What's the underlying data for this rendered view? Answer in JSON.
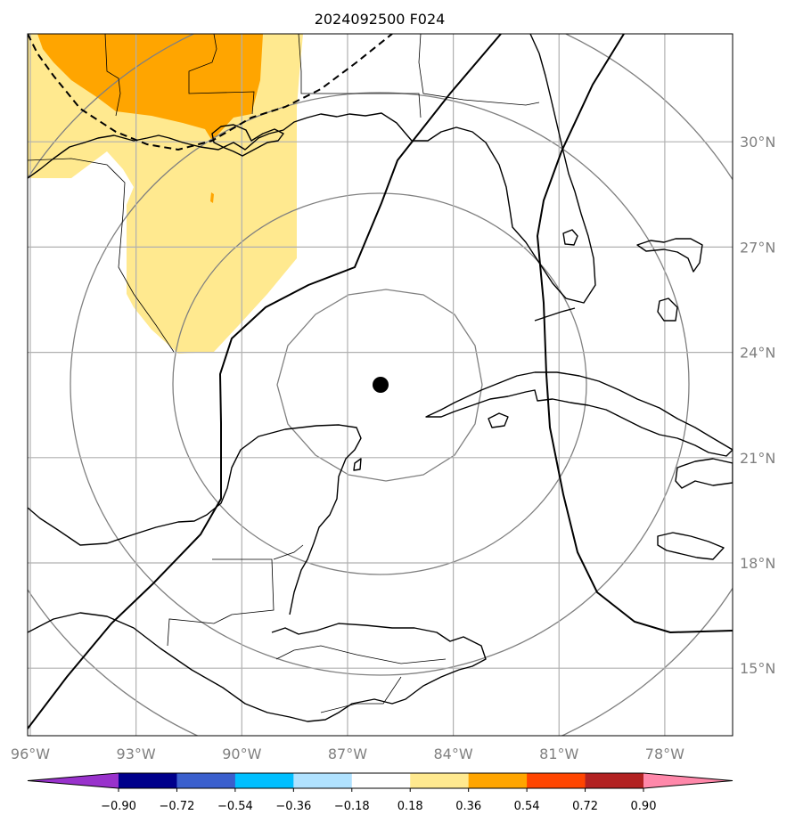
{
  "title": "2024092500 F024",
  "map": {
    "lon_range": [
      -96,
      -76
    ],
    "lat_range": [
      13,
      33
    ],
    "lon_ticks": [
      {
        "value": -96,
        "label": "96°W"
      },
      {
        "value": -93,
        "label": "93°W"
      },
      {
        "value": -90,
        "label": "90°W"
      },
      {
        "value": -87,
        "label": "87°W"
      },
      {
        "value": -84,
        "label": "84°W"
      },
      {
        "value": -81,
        "label": "81°W"
      },
      {
        "value": -78,
        "label": "78°W"
      }
    ],
    "lat_ticks": [
      {
        "value": 15,
        "label": "15°N"
      },
      {
        "value": 18,
        "label": "18°N"
      },
      {
        "value": 21,
        "label": "21°N"
      },
      {
        "value": 24,
        "label": "24°N"
      },
      {
        "value": 27,
        "label": "27°N"
      },
      {
        "value": 30,
        "label": "30°N"
      }
    ],
    "grid": true,
    "storm_center": {
      "lon": -86.0,
      "lat": 22.7
    },
    "range_rings_deg": [
      2.7,
      5.6,
      8.6,
      11.6
    ],
    "colors": {
      "land_line": "#000000",
      "grid": "#b0b0b0",
      "ring": "#808080",
      "fill_low": "#ffe98f",
      "fill_mid": "#ffa500"
    }
  },
  "colorbar": {
    "boundaries": [
      -0.9,
      -0.72,
      -0.54,
      -0.36,
      -0.18,
      0.18,
      0.36,
      0.54,
      0.72,
      0.9
    ],
    "labels": [
      "−0.90",
      "−0.72",
      "−0.54",
      "−0.36",
      "−0.18",
      "0.18",
      "0.36",
      "0.54",
      "0.72",
      "0.90"
    ],
    "colors": [
      "#9932cc",
      "#00008b",
      "#3a5fcd",
      "#00bfff",
      "#b0e2ff",
      "#ffffff",
      "#ffe98f",
      "#ffa500",
      "#ff4500",
      "#b22222",
      "#ff88aa"
    ],
    "extend": "both"
  }
}
